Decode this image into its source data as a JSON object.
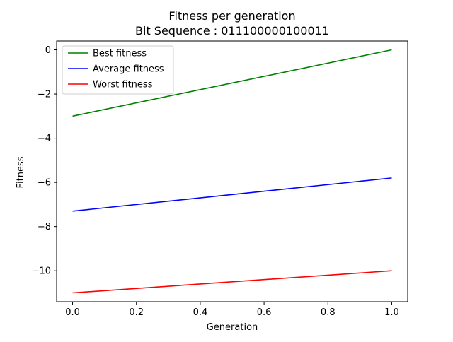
{
  "chart_data": {
    "type": "line",
    "title": "Fitness per generation",
    "subtitle": "Bit Sequence : 011100000100011",
    "xlabel": "Generation",
    "ylabel": "Fitness",
    "xlim": [
      -0.05,
      1.05
    ],
    "ylim": [
      -11.4,
      0.4
    ],
    "xticks": [
      0.0,
      0.2,
      0.4,
      0.6,
      0.8,
      1.0
    ],
    "xtick_labels": [
      "0.0",
      "0.2",
      "0.4",
      "0.6",
      "0.8",
      "1.0"
    ],
    "yticks": [
      0,
      -2,
      -4,
      -6,
      -8,
      -10
    ],
    "ytick_labels": [
      "0",
      "−2",
      "−4",
      "−6",
      "−8",
      "−10"
    ],
    "grid": false,
    "legend_position": "top-left",
    "x": [
      0,
      1
    ],
    "series": [
      {
        "name": "Best fitness",
        "color": "#008000",
        "values": [
          -3.0,
          0.0
        ]
      },
      {
        "name": "Average fitness",
        "color": "#0000ff",
        "values": [
          -7.3,
          -5.8
        ]
      },
      {
        "name": "Worst fitness",
        "color": "#ff0000",
        "values": [
          -11.0,
          -10.0
        ]
      }
    ]
  }
}
